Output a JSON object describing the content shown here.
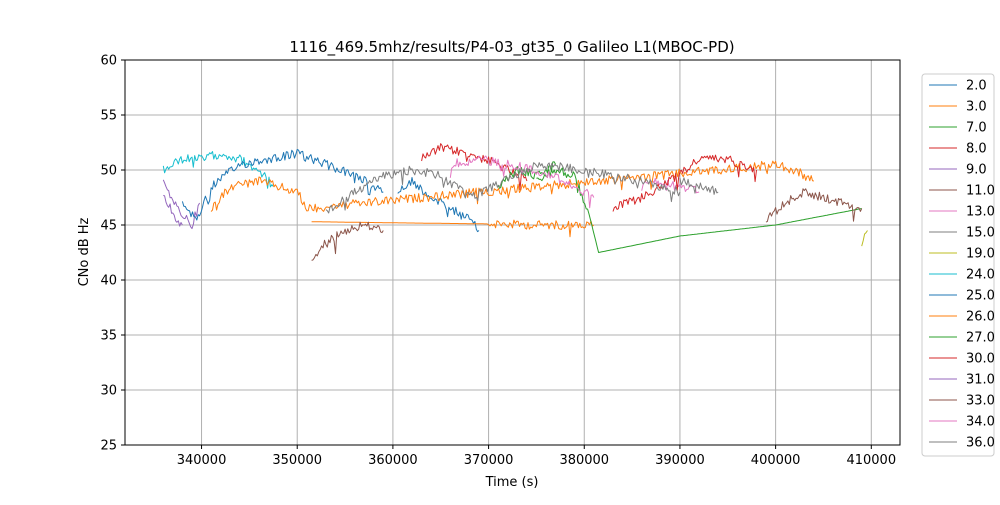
{
  "chart_data": {
    "type": "line",
    "title": "1116_469.5mhz/results/P4-03_gt35_0 Galileo L1(MBOC-PD)",
    "xlabel": "Time (s)",
    "ylabel": "CNo dB Hz",
    "xlim": [
      332000,
      413000
    ],
    "ylim": [
      25,
      60
    ],
    "xticks": [
      340000,
      350000,
      360000,
      370000,
      380000,
      390000,
      400000,
      410000
    ],
    "xtick_labels": [
      "340000",
      "350000",
      "360000",
      "370000",
      "380000",
      "390000",
      "400000",
      "410000"
    ],
    "yticks": [
      25,
      30,
      35,
      40,
      45,
      50,
      55,
      60
    ],
    "ytick_labels": [
      "25",
      "30",
      "35",
      "40",
      "45",
      "50",
      "55",
      "60"
    ],
    "grid": true,
    "legend_position": "right, outside the plot area",
    "series": [
      {
        "name": "2.0",
        "color": "#1f77b4",
        "x": [
          360500,
          362000,
          364000,
          366000,
          368000,
          369000
        ],
        "y": [
          48.0,
          49.0,
          47.5,
          46.5,
          45.5,
          44.5
        ]
      },
      {
        "name": "3.0",
        "color": "#ff7f0e",
        "x": [
          351500,
          360000,
          370000,
          375000,
          381000
        ],
        "y": [
          45.3,
          45.2,
          45.1,
          45.0,
          45.0
        ]
      },
      {
        "name": "7.0",
        "color": "#2ca02c",
        "x": [
          375000,
          377000,
          379000,
          380500,
          381500,
          390000,
          400000,
          409000
        ],
        "y": [
          49.0,
          50.0,
          49.5,
          46.0,
          42.5,
          44.0,
          45.0,
          46.5
        ]
      },
      {
        "name": "8.0",
        "color": "#d62728",
        "x": [
          363000,
          365000,
          368000,
          371000,
          374000
        ],
        "y": [
          51.0,
          52.0,
          51.5,
          50.5,
          49.0
        ]
      },
      {
        "name": "9.0",
        "color": "#9467bd",
        "x": [
          336000,
          337000,
          338000,
          339000,
          339800
        ],
        "y": [
          49.5,
          47.0,
          46.0,
          45.0,
          47.0
        ]
      },
      {
        "name": "11.0",
        "color": "#8c564b",
        "x": [
          351500,
          353000,
          355000,
          357000,
          359000
        ],
        "y": [
          41.5,
          43.5,
          44.5,
          45.0,
          44.5
        ]
      },
      {
        "name": "13.0",
        "color": "#e377c2",
        "x": [
          386000,
          388000,
          390000,
          392000
        ],
        "y": [
          48.5,
          49.0,
          48.5,
          48.0
        ]
      },
      {
        "name": "15.0",
        "color": "#7f7f7f",
        "x": [
          390000,
          392000,
          394000
        ],
        "y": [
          49.0,
          48.5,
          48.0
        ]
      },
      {
        "name": "19.0",
        "color": "#bcbd22",
        "x": [
          409000,
          409300,
          409600
        ],
        "y": [
          43.0,
          44.0,
          44.5
        ]
      },
      {
        "name": "24.0",
        "color": "#17becf",
        "x": [
          336000,
          338000,
          340000,
          342000,
          344000,
          346000,
          347500
        ],
        "y": [
          50.0,
          51.0,
          51.0,
          51.5,
          51.0,
          50.0,
          48.5
        ]
      },
      {
        "name": "25.0",
        "color": "#1f77b4",
        "x": [
          338000,
          339500,
          341000,
          344000,
          347000,
          350000,
          353000,
          356000,
          359000
        ],
        "y": [
          47.0,
          45.5,
          48.5,
          50.5,
          51.0,
          51.5,
          50.5,
          49.5,
          48.0
        ]
      },
      {
        "name": "26.0",
        "color": "#ff7f0e",
        "x": [
          341000,
          343000,
          346000,
          348000,
          350000,
          351000,
          400000,
          402000,
          404000
        ],
        "y": [
          46.5,
          48.5,
          49.0,
          48.5,
          48.0,
          46.5,
          50.5,
          50.0,
          49.0
        ]
      },
      {
        "name": "27.0",
        "color": "#2ca02c",
        "x": [
          371000,
          373000,
          375000,
          377000
        ],
        "y": [
          48.5,
          50.0,
          49.5,
          50.5
        ]
      },
      {
        "name": "30.0",
        "color": "#d62728",
        "x": [
          383000,
          386000,
          389000,
          392000,
          395000,
          398000
        ],
        "y": [
          46.5,
          47.5,
          49.0,
          51.0,
          51.0,
          50.0
        ]
      },
      {
        "name": "31.0",
        "color": "#9467bd",
        "x": [
          336000,
          337000,
          338000
        ],
        "y": [
          48.0,
          46.0,
          45.0
        ]
      },
      {
        "name": "33.0",
        "color": "#8c564b",
        "x": [
          399000,
          401000,
          403000,
          405000,
          407000,
          409000
        ],
        "y": [
          45.5,
          47.0,
          48.0,
          47.5,
          47.0,
          46.5
        ]
      },
      {
        "name": "34.0",
        "color": "#e377c2",
        "x": [
          366000,
          369000,
          372000,
          375000,
          378000,
          381000
        ],
        "y": [
          50.5,
          51.0,
          50.5,
          50.0,
          49.0,
          47.5
        ]
      },
      {
        "name": "36.0",
        "color": "#7f7f7f",
        "x": [
          353000,
          356000,
          359000,
          362000,
          365000,
          368000,
          375000,
          380000,
          386000,
          390000
        ],
        "y": [
          46.0,
          48.0,
          49.5,
          50.0,
          49.5,
          47.5,
          50.5,
          50.0,
          49.0,
          48.0
        ]
      }
    ]
  }
}
